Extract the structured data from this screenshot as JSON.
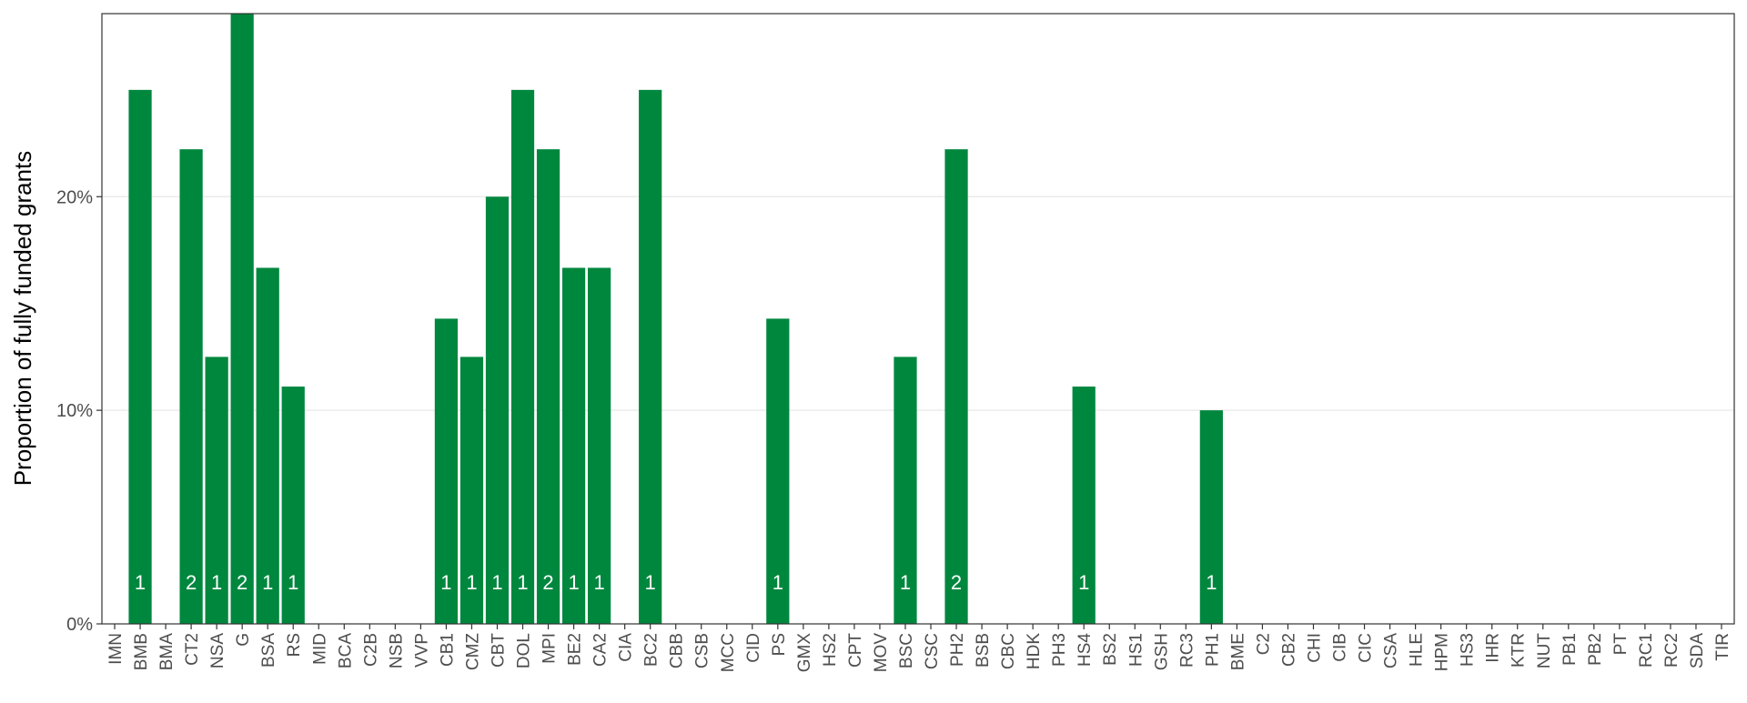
{
  "chart_data": {
    "type": "bar",
    "ylabel": "Proportion of fully funded grants",
    "ylim": [
      0,
      0.2857
    ],
    "yticks": [
      {
        "value": 0,
        "label": "0%"
      },
      {
        "value": 0.1,
        "label": "10%"
      },
      {
        "value": 0.2,
        "label": "20%"
      }
    ],
    "grid": "horizontal",
    "bar_color": "#00873E",
    "categories": [
      "IMN",
      "BMB",
      "BMA",
      "CT2",
      "NSA",
      "G",
      "BSA",
      "RS",
      "MID",
      "BCA",
      "C2B",
      "NSB",
      "VVP",
      "CB1",
      "CMZ",
      "CBT",
      "DOL",
      "MPI",
      "BE2",
      "CA2",
      "CIA",
      "BC2",
      "CBB",
      "CSB",
      "MCC",
      "CID",
      "PS",
      "GMX",
      "HS2",
      "CPT",
      "MOV",
      "BSC",
      "CSC",
      "PH2",
      "BSB",
      "CBC",
      "HDK",
      "PH3",
      "HS4",
      "BS2",
      "HS1",
      "GSH",
      "RC3",
      "PH1",
      "BME",
      "C2",
      "CB2",
      "CHI",
      "CIB",
      "CIC",
      "CSA",
      "HLE",
      "HPM",
      "HS3",
      "IHR",
      "KTR",
      "NUT",
      "PB1",
      "PB2",
      "PT",
      "RC1",
      "RC2",
      "SDA",
      "TIR"
    ],
    "values": [
      0,
      0.25,
      0,
      0.2222,
      0.125,
      0.2857,
      0.1667,
      0.1111,
      0,
      0,
      0,
      0,
      0,
      0.1429,
      0.125,
      0.2,
      0.25,
      0.2222,
      0.1667,
      0.1667,
      0,
      0.25,
      0,
      0,
      0,
      0,
      0.1429,
      0,
      0,
      0,
      0,
      0.125,
      0,
      0.2222,
      0,
      0,
      0,
      0,
      0.1111,
      0,
      0,
      0,
      0,
      0.1,
      0,
      0,
      0,
      0,
      0,
      0,
      0,
      0,
      0,
      0,
      0,
      0,
      0,
      0,
      0,
      0,
      0,
      0,
      0,
      0
    ],
    "counts": [
      "",
      "1",
      "",
      "2",
      "1",
      "2",
      "1",
      "1",
      "",
      "",
      "",
      "",
      "",
      "1",
      "1",
      "1",
      "1",
      "2",
      "1",
      "1",
      "",
      "1",
      "",
      "",
      "",
      "",
      "1",
      "",
      "",
      "",
      "",
      "1",
      "",
      "2",
      "",
      "",
      "",
      "",
      "1",
      "",
      "",
      "",
      "",
      "1",
      "",
      "",
      "",
      "",
      "",
      "",
      "",
      "",
      "",
      "",
      "",
      "",
      "",
      "",
      "",
      "",
      "",
      "",
      "",
      ""
    ]
  }
}
